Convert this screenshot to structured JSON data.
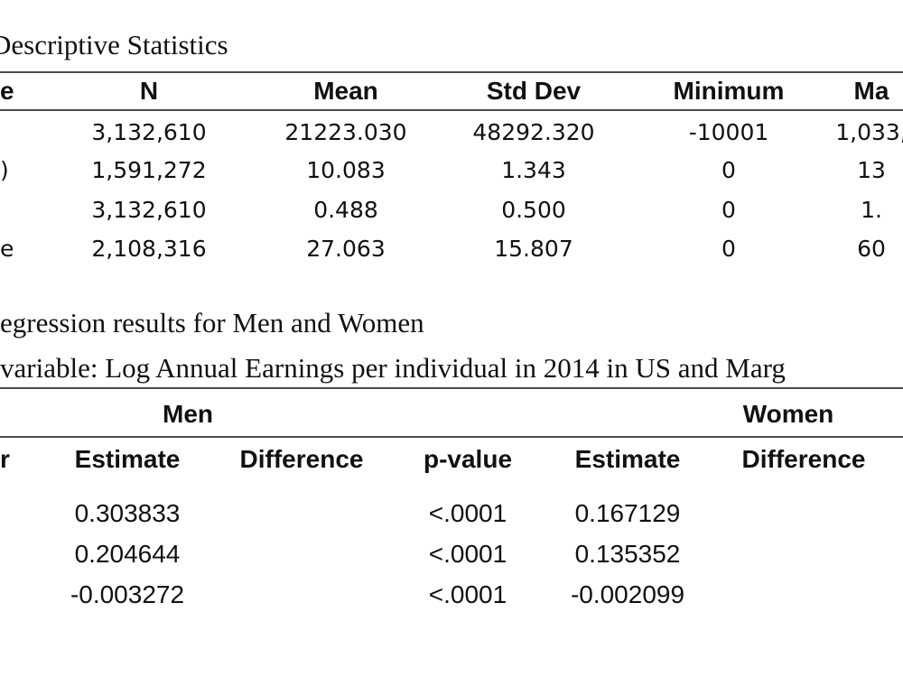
{
  "table1": {
    "title": "Descriptive Statistics",
    "header": [
      "e",
      "N",
      "Mean",
      "Std Dev",
      "Minimum",
      "Ma"
    ],
    "rows": [
      {
        "cells": [
          "3,132,610",
          "21223.030",
          "48292.320",
          "-10001",
          "1,033,"
        ]
      },
      {
        "label": ")",
        "cells": [
          "1,591,272",
          "10.083",
          "1.343",
          "0",
          "13"
        ]
      },
      {
        "cells": [
          "3,132,610",
          "0.488",
          "0.500",
          "0",
          "1."
        ]
      },
      {
        "label": "e",
        "cells": [
          "2,108,316",
          "27.063",
          "15.807",
          "0",
          "60"
        ]
      }
    ]
  },
  "table2": {
    "title": "egression results for Men and Women",
    "subtitle": "variable: Log Annual Earnings per individual in 2014 in US and Marg",
    "groups": [
      "Men",
      "Women"
    ],
    "header": [
      "r",
      "Estimate",
      "Difference",
      "p-value",
      "Estimate",
      "Difference"
    ],
    "rows": [
      [
        "0.303833",
        "<.0001",
        "0.167129"
      ],
      [
        "0.204644",
        "<.0001",
        "0.135352"
      ],
      [
        "-0.003272",
        "<.0001",
        "-0.002099"
      ]
    ]
  }
}
